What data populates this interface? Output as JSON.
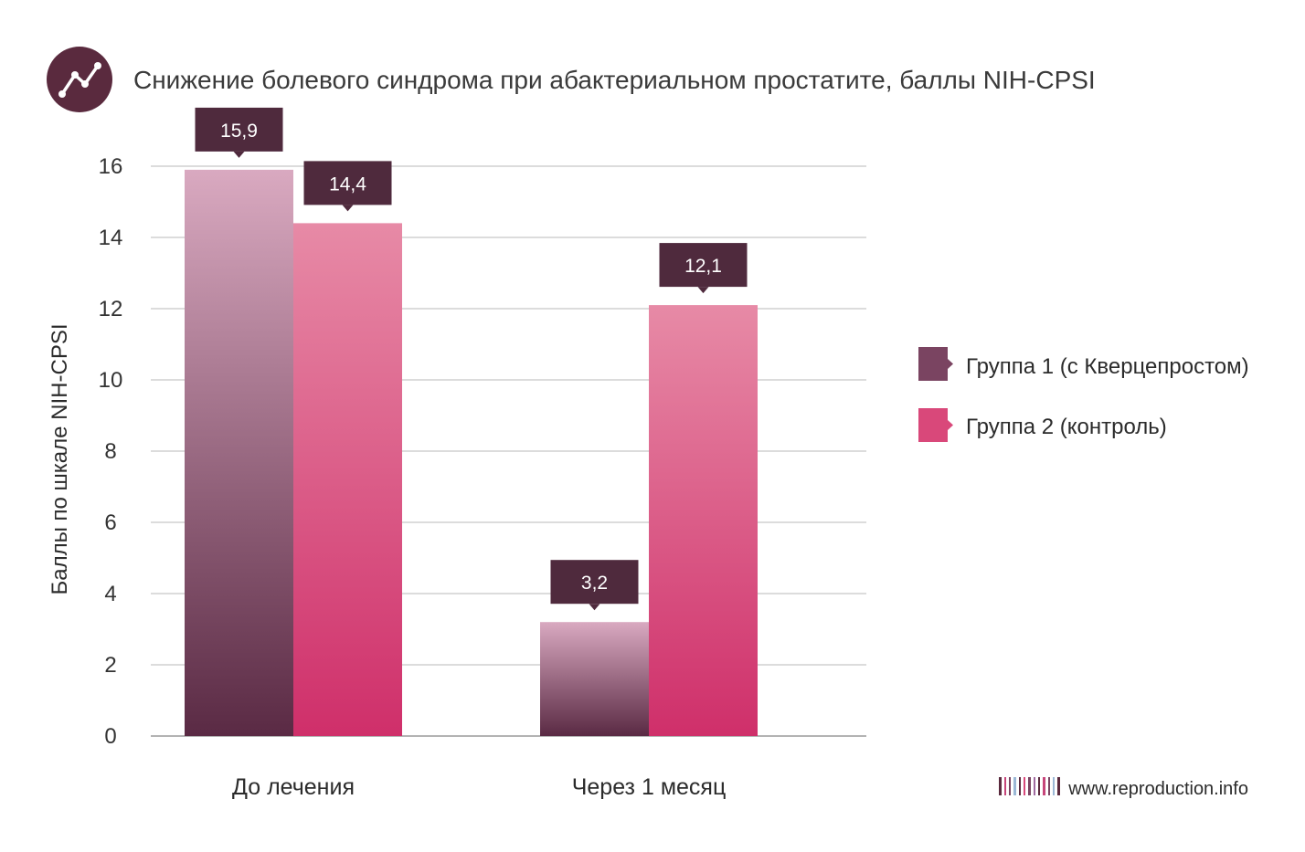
{
  "header": {
    "title": "Снижение болевого синдрома при абактериальном простатите, баллы NIH-CPSI",
    "icon": "line-chart-icon"
  },
  "colors": {
    "group1_top": "#d9a9c0",
    "group1_bottom": "#5a2a44",
    "group2_top": "#e78aa6",
    "group2_bottom": "#cf2f6a",
    "callout": "#4f2a3d",
    "icon_bg": "#5a2a3e",
    "legend_group1": "#7a4461",
    "legend_group2": "#d9487a",
    "grid": "#c8c8c8"
  },
  "chart_data": {
    "type": "bar",
    "title": "Снижение болевого синдрома при абактериальном простатите, баллы NIH-CPSI",
    "xlabel": "",
    "ylabel": "Баллы по шкале NIH-CPSI",
    "ylim": [
      0,
      16
    ],
    "yticks": [
      0,
      2,
      4,
      6,
      8,
      10,
      12,
      14,
      16
    ],
    "grid": true,
    "legend_position": "right",
    "categories": [
      "До лечения",
      "Через 1 месяц"
    ],
    "series": [
      {
        "name": "Группа 1 (с Кверцепростом)",
        "values": [
          15.9,
          3.2
        ],
        "labels": [
          "15,9",
          "3,2"
        ]
      },
      {
        "name": "Группа 2 (контроль)",
        "values": [
          14.4,
          12.1
        ],
        "labels": [
          "14,4",
          "12,1"
        ]
      }
    ]
  },
  "footer": {
    "website": "www.reproduction.info",
    "logo": "barcode-logo-icon"
  }
}
